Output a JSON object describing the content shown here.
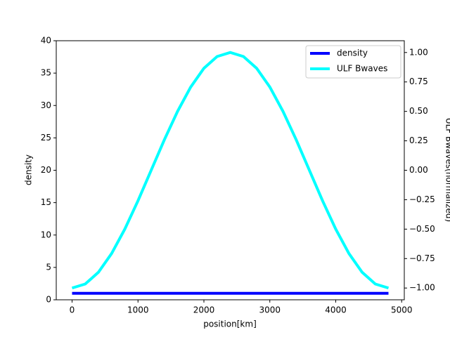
{
  "chart_data": {
    "type": "line",
    "x_label": "position[km]",
    "y_label": "density",
    "y2_label": "ULF Bwaves(normalized)",
    "x": [
      0,
      200,
      400,
      600,
      800,
      1000,
      1200,
      1400,
      1600,
      1800,
      2000,
      2200,
      2400,
      2600,
      2800,
      3000,
      3200,
      3400,
      3600,
      3800,
      4000,
      4200,
      4400,
      4600,
      4800
    ],
    "series": [
      {
        "name": "density",
        "color": "#0000ff",
        "axis": "y",
        "values": [
          1,
          1,
          1,
          1,
          1,
          1,
          1,
          1,
          1,
          1,
          1,
          1,
          1,
          1,
          1,
          1,
          1,
          1,
          1,
          1,
          1,
          1,
          1,
          1,
          1
        ]
      },
      {
        "name": "ULF Bwaves",
        "color": "#00ffff",
        "axis": "y2",
        "values": [
          -1,
          -0.966,
          -0.866,
          -0.707,
          -0.5,
          -0.259,
          0,
          0.259,
          0.5,
          0.707,
          0.866,
          0.966,
          1,
          0.966,
          0.866,
          0.707,
          0.5,
          0.259,
          0,
          -0.259,
          -0.5,
          -0.707,
          -0.866,
          -0.966,
          -1
        ]
      }
    ],
    "xlim": [
      -240,
      5040
    ],
    "xticks": [
      0,
      1000,
      2000,
      3000,
      4000,
      5000
    ],
    "ylim": [
      0,
      40
    ],
    "yticks": [
      0,
      5,
      10,
      15,
      20,
      25,
      30,
      35,
      40
    ],
    "y2lim": [
      -1.1,
      1.1
    ],
    "y2ticks": [
      {
        "value": -1,
        "label": "−1.00"
      },
      {
        "value": -0.75,
        "label": "−0.75"
      },
      {
        "value": -0.5,
        "label": "−0.50"
      },
      {
        "value": -0.25,
        "label": "−0.25"
      },
      {
        "value": 0,
        "label": "0.00"
      },
      {
        "value": 0.25,
        "label": "0.25"
      },
      {
        "value": 0.5,
        "label": "0.50"
      },
      {
        "value": 0.75,
        "label": "0.75"
      },
      {
        "value": 1,
        "label": "1.00"
      }
    ],
    "legend": "upper right"
  }
}
